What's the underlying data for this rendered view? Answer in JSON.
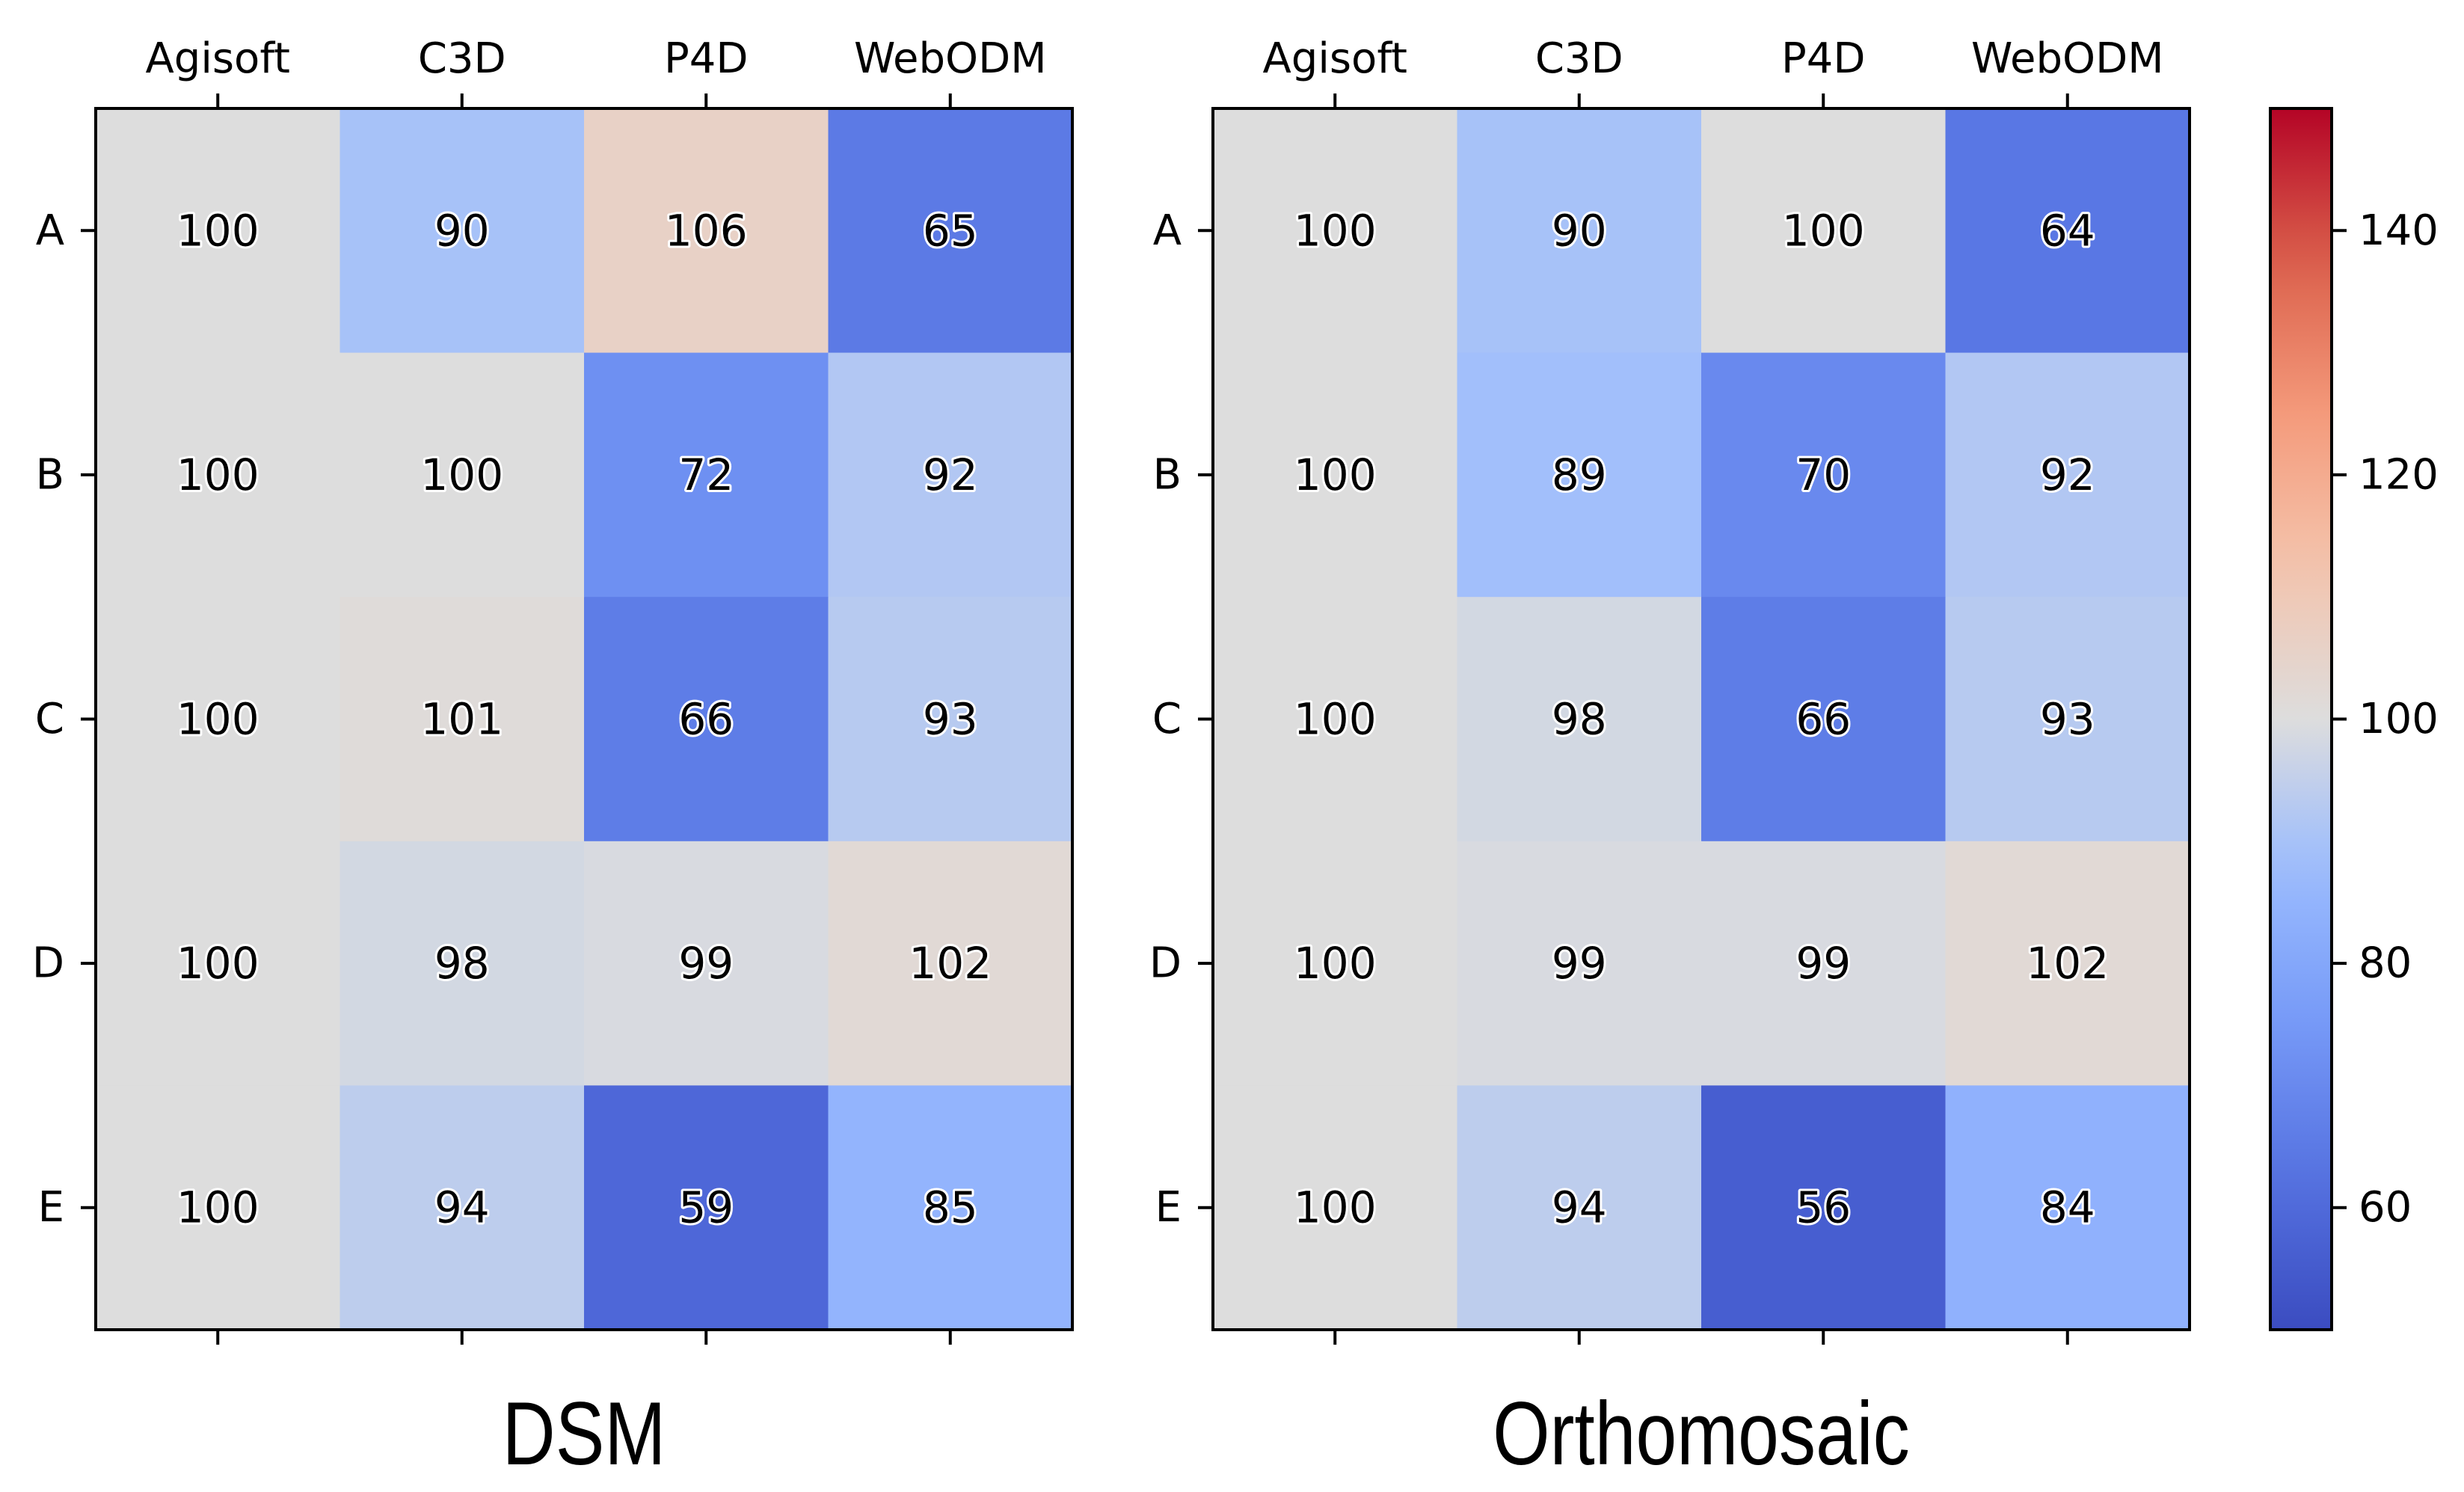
{
  "chart_data": [
    {
      "type": "heatmap",
      "title": "DSM",
      "x_labels": [
        "Agisoft",
        "C3D",
        "P4D",
        "WebODM"
      ],
      "y_labels": [
        "A",
        "B",
        "C",
        "D",
        "E"
      ],
      "values": [
        [
          100,
          90,
          106,
          65
        ],
        [
          100,
          100,
          72,
          92
        ],
        [
          100,
          101,
          66,
          93
        ],
        [
          100,
          98,
          99,
          102
        ],
        [
          100,
          94,
          59,
          85
        ]
      ]
    },
    {
      "type": "heatmap",
      "title": "Orthomosaic",
      "x_labels": [
        "Agisoft",
        "C3D",
        "P4D",
        "WebODM"
      ],
      "y_labels": [
        "A",
        "B",
        "C",
        "D",
        "E"
      ],
      "values": [
        [
          100,
          90,
          100,
          64
        ],
        [
          100,
          89,
          70,
          92
        ],
        [
          100,
          98,
          66,
          93
        ],
        [
          100,
          99,
          99,
          102
        ],
        [
          100,
          94,
          56,
          84
        ]
      ]
    }
  ],
  "colorbar": {
    "colormap": "coolwarm",
    "vmin": 50,
    "vmax": 150,
    "ticks": [
      60,
      80,
      100,
      120,
      140
    ],
    "low_color": "#3b4cc0",
    "mid_color": "#dddddd",
    "high_color": "#b40426"
  }
}
